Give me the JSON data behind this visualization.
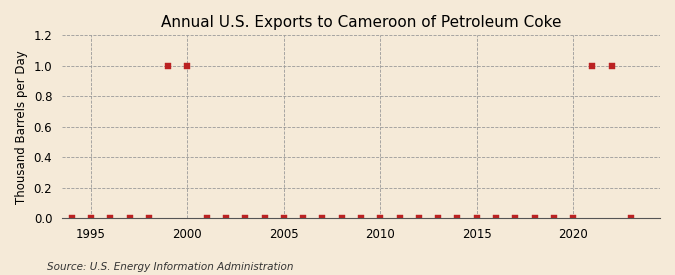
{
  "title": "Annual U.S. Exports to Cameroon of Petroleum Coke",
  "ylabel": "Thousand Barrels per Day",
  "source": "Source: U.S. Energy Information Administration",
  "bg_color": "#f5ead8",
  "plot_bg_color": "#f5ead8",
  "xlim": [
    1993.5,
    2024.5
  ],
  "ylim": [
    0.0,
    1.2
  ],
  "yticks": [
    0.0,
    0.2,
    0.4,
    0.6,
    0.8,
    1.0,
    1.2
  ],
  "xticks": [
    1995,
    2000,
    2005,
    2010,
    2015,
    2020
  ],
  "years": [
    1994,
    1995,
    1996,
    1997,
    1998,
    1999,
    2000,
    2001,
    2002,
    2003,
    2004,
    2005,
    2006,
    2007,
    2008,
    2009,
    2010,
    2011,
    2012,
    2013,
    2014,
    2015,
    2016,
    2017,
    2018,
    2019,
    2020,
    2021,
    2022,
    2023
  ],
  "values": [
    0,
    0,
    0,
    0,
    0,
    1.0,
    1.0,
    0,
    0,
    0,
    0,
    0,
    0,
    0,
    0,
    0,
    0,
    0,
    0,
    0,
    0,
    0,
    0,
    0,
    0,
    0,
    0,
    1.0,
    1.0,
    0
  ],
  "marker_color": "#bb2222",
  "marker_size": 4,
  "grid_color": "#999999",
  "line_color": "none",
  "title_fontsize": 11,
  "label_fontsize": 8.5,
  "tick_fontsize": 8.5,
  "source_fontsize": 7.5
}
